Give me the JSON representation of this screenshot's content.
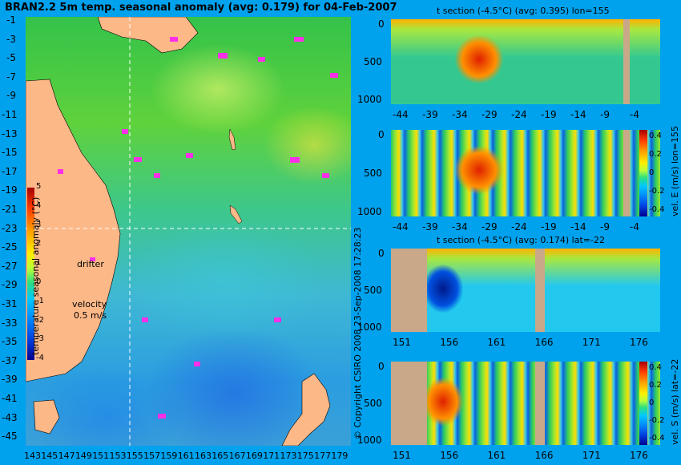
{
  "main_title": "BRAN2.2 5m temp. seasonal anomaly (avg: 0.179) for 04-Feb-2007",
  "map": {
    "lat_ticks": [
      "-1",
      "-3",
      "-5",
      "-7",
      "-9",
      "-11",
      "-13",
      "-15",
      "-17",
      "-19",
      "-21",
      "-23",
      "-25",
      "-27",
      "-29",
      "-31",
      "-33",
      "-35",
      "-37",
      "-39",
      "-41",
      "-43",
      "-45"
    ],
    "lon_ticks": [
      "143",
      "145",
      "147",
      "149",
      "151",
      "153",
      "155",
      "157",
      "159",
      "161",
      "163",
      "165",
      "167",
      "169",
      "171",
      "173",
      "175",
      "177",
      "179"
    ],
    "colorbar_label": "temperature seasonal anomaly (°C)",
    "colorbar_ticks": [
      "5",
      "4",
      "3",
      "2",
      "1",
      "0",
      "-1",
      "-2",
      "-3",
      "-4"
    ],
    "drifter_label": "drifter",
    "velocity_label": "velocity",
    "velocity_value": "0.5 m/s"
  },
  "copyright": "© Copyright CSIRO 2008   23-Sep-2008 17:28:23",
  "panels": [
    {
      "title": "t section (-4.5°C) (avg: 0.395) lon=155",
      "y_ticks": [
        "0",
        "500",
        "1000"
      ],
      "x_ticks": [
        "-44",
        "-39",
        "-34",
        "-29",
        "-24",
        "-19",
        "-14",
        "-9",
        "-4"
      ],
      "side_label": "",
      "cb_ticks": []
    },
    {
      "title": "",
      "y_ticks": [
        "0",
        "500",
        "1000"
      ],
      "x_ticks": [
        "-44",
        "-39",
        "-34",
        "-29",
        "-24",
        "-19",
        "-14",
        "-9",
        "-4"
      ],
      "side_label": "vel. E (m/s) lon=155",
      "cb_ticks": [
        "0.4",
        "0.2",
        "0",
        "-0.2",
        "-0.4"
      ]
    },
    {
      "title": "t section (-4.5°C) (avg: 0.174) lat=-22",
      "y_ticks": [
        "0",
        "500",
        "1000"
      ],
      "x_ticks": [
        "151",
        "156",
        "161",
        "166",
        "171",
        "176"
      ],
      "side_label": "",
      "cb_ticks": []
    },
    {
      "title": "",
      "y_ticks": [
        "0",
        "500",
        "1000"
      ],
      "x_ticks": [
        "151",
        "156",
        "161",
        "166",
        "171",
        "176"
      ],
      "side_label": "vel. S (m/s) lat=-22",
      "cb_ticks": [
        "0.4",
        "0.2",
        "0",
        "-0.2",
        "-0.4"
      ]
    }
  ]
}
